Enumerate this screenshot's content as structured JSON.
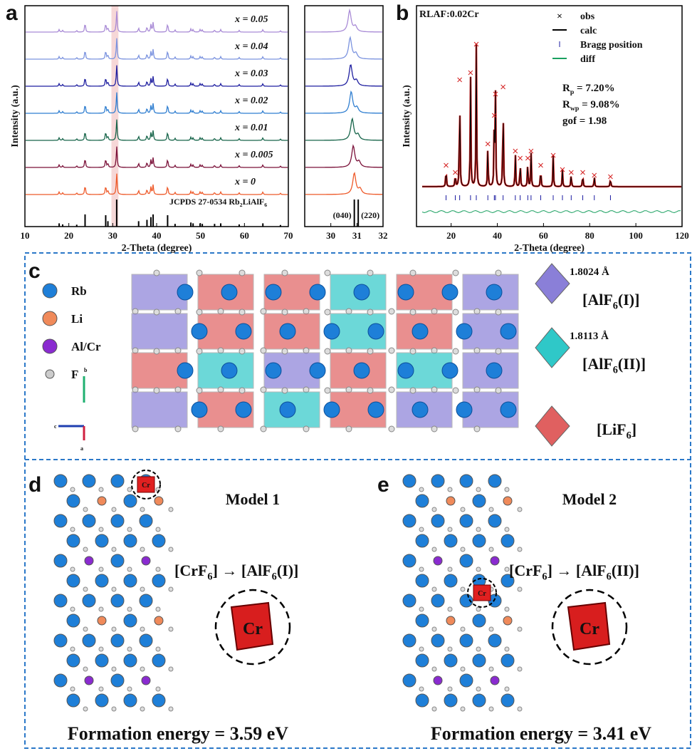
{
  "panel_a": {
    "label": "a",
    "ylabel": "Intensity (a.u.)",
    "xlabel": "2-Theta (degree)",
    "xlim": [
      10,
      70
    ],
    "xticks": [
      10,
      20,
      30,
      40,
      50,
      60,
      70
    ],
    "series": [
      {
        "name": "x = 0.05",
        "color": "#a98bd6",
        "inset_peak": 30.72
      },
      {
        "name": "x = 0.04",
        "color": "#7b93df",
        "inset_peak": 30.74
      },
      {
        "name": "x = 0.03",
        "color": "#1f1fa0",
        "inset_peak": 30.76
      },
      {
        "name": "x = 0.02",
        "color": "#2f7ed0",
        "inset_peak": 30.78
      },
      {
        "name": "x = 0.01",
        "color": "#17654a",
        "inset_peak": 30.82
      },
      {
        "name": "x = 0.005",
        "color": "#7a1038",
        "inset_peak": 30.86
      },
      {
        "name": "x = 0",
        "color": "#ee5a2a",
        "inset_peak": 30.9
      }
    ],
    "peaks": {
      "x": [
        17.8,
        18.6,
        21.8,
        23.7,
        28.4,
        28.9,
        30.9,
        35.9,
        37.8,
        38.7,
        39.2,
        42.5,
        44.2,
        47.8,
        48.3,
        49.9,
        50.4,
        53.2,
        54.6,
        58.8,
        64.2,
        68.2
      ],
      "heights": [
        0.12,
        0.08,
        0.07,
        0.45,
        0.42,
        0.2,
        1,
        0.2,
        0.25,
        0.35,
        0.45,
        0.42,
        0.1,
        0.15,
        0.12,
        0.12,
        0.1,
        0.1,
        0.12,
        0.08,
        0.12,
        0.06
      ]
    },
    "reference": {
      "parts": [
        "JCPDS 27-0534  Rb",
        "2",
        "LiAlF",
        "6"
      ]
    },
    "inset": {
      "xlim": [
        29,
        32
      ],
      "xticks": [
        30,
        31,
        32
      ],
      "planes": [
        {
          "label": "(040)",
          "x": 30.9
        },
        {
          "label": "(220)",
          "x": 31.05
        }
      ]
    }
  },
  "panel_b": {
    "label": "b",
    "sample": "RLAF:0.02Cr",
    "ylabel": "Intensity (a.u.)",
    "xlabel": "2-Theta (degree)",
    "xlim": [
      5,
      120
    ],
    "xticks": [
      20,
      40,
      60,
      80,
      100,
      120
    ],
    "legend": [
      "obs",
      "calc",
      "Bragg position",
      "diff"
    ],
    "colors": {
      "obs": "#d42020",
      "calc": "#000000",
      "bragg": "#1a1aa0",
      "diff": "#1aa060"
    },
    "stats": [
      {
        "parts": [
          "R",
          "p",
          " = 7.20%"
        ]
      },
      {
        "parts": [
          "R",
          "wp",
          " = 9.08%"
        ]
      },
      {
        "parts": [
          "gof = 1.98"
        ]
      }
    ],
    "peaks": {
      "x": [
        17.8,
        21.8,
        23.7,
        28.4,
        30.9,
        35.9,
        38.7,
        39.2,
        42.5,
        47.8,
        49.9,
        53.2,
        54.6,
        58.8,
        64.2,
        68.2,
        72,
        77,
        82,
        89
      ],
      "heights": [
        0.15,
        0.1,
        0.75,
        0.8,
        1,
        0.3,
        0.5,
        0.65,
        0.7,
        0.25,
        0.2,
        0.2,
        0.25,
        0.15,
        0.22,
        0.12,
        0.1,
        0.1,
        0.08,
        0.07
      ]
    }
  },
  "panel_c": {
    "label": "c",
    "legend": [
      {
        "name": "Rb",
        "color": "#1e7fd8"
      },
      {
        "name": "Li",
        "color": "#f08a5a"
      },
      {
        "name": "Al/Cr",
        "color": "#8a2bd0"
      },
      {
        "name": "F",
        "color": "#cccccc"
      }
    ],
    "axes": [
      "b",
      "c",
      "a"
    ],
    "polyhedra": [
      {
        "bond": "1.8024 Å",
        "parts": [
          "[AlF",
          "6",
          "(I)]"
        ],
        "color": "#8a7fd8"
      },
      {
        "bond": "1.8113 Å",
        "parts": [
          "[AlF",
          "6",
          "(II)]"
        ],
        "color": "#2fc8c8"
      },
      {
        "parts": [
          "[LiF",
          "6",
          "]"
        ],
        "color": "#e06060"
      }
    ]
  },
  "panel_d": {
    "label": "d",
    "model": "Model 1",
    "parts": [
      "[CrF",
      "6",
      "] → [AlF",
      "6",
      "(I)]"
    ],
    "cr": "Cr",
    "energy": "Formation energy = 3.59 eV"
  },
  "panel_e": {
    "label": "e",
    "model": "Model 2",
    "parts": [
      "[CrF",
      "6",
      "] → [AlF",
      "6",
      "(II)]"
    ],
    "cr": "Cr",
    "energy": "Formation energy = 3.41 eV"
  }
}
